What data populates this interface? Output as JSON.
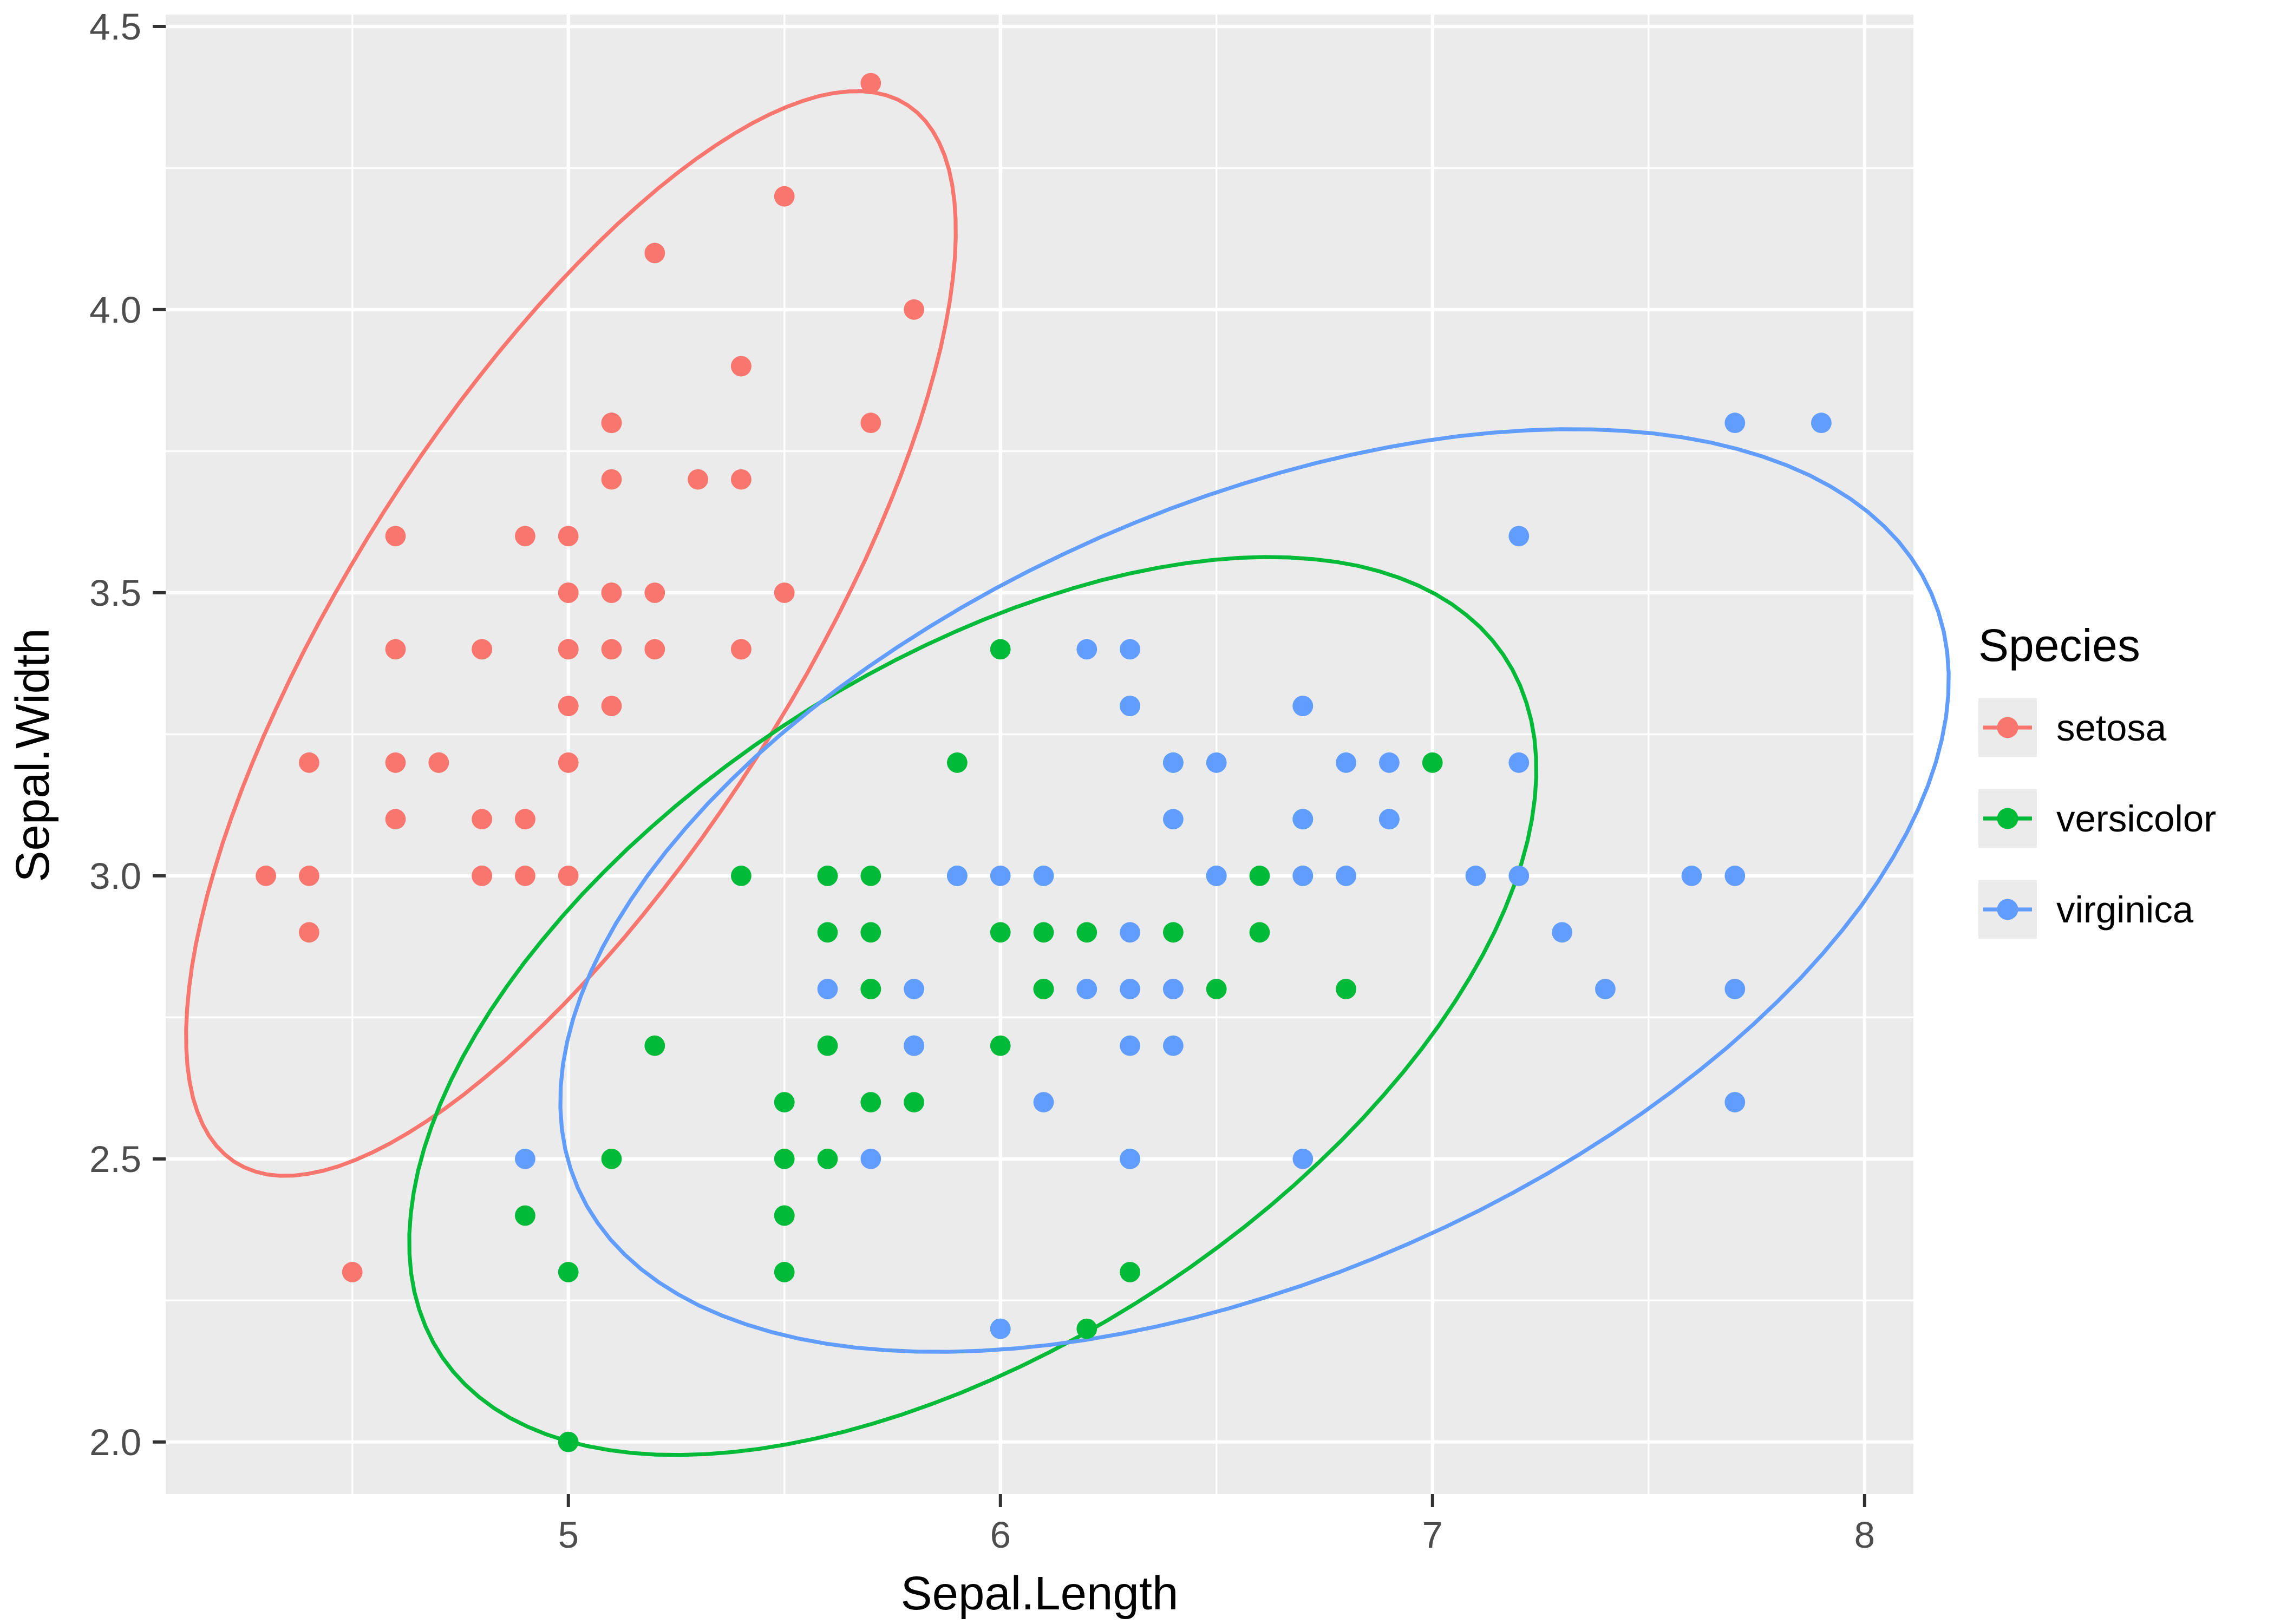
{
  "colors": {
    "panel_bg": "#EBEBEB",
    "grid": "#FFFFFF",
    "tick_mark": "#333333",
    "tick_label": "#4D4D4D",
    "axis_title": "#000000",
    "legend_key_bg": "#EBEBEB",
    "setosa": "#F8766D",
    "versicolor": "#00BA38",
    "virginica": "#619CFF"
  },
  "chart_data": {
    "type": "scatter",
    "title": "",
    "xlabel": "Sepal.Length",
    "ylabel": "Sepal.Width",
    "legend_title": "Species",
    "legend_position": "right",
    "grid": "on",
    "x_domain": [
      4.068,
      8.113
    ],
    "y_domain": [
      1.908,
      4.521
    ],
    "x_tick_values": [
      5,
      6,
      7,
      8
    ],
    "x_tick_labels": [
      "5",
      "6",
      "7",
      "8"
    ],
    "y_tick_values": [
      2.0,
      2.5,
      3.0,
      3.5,
      4.0,
      4.5
    ],
    "y_tick_labels": [
      "2.0",
      "2.5",
      "3.0",
      "3.5",
      "4.0",
      "4.5"
    ],
    "x_minor": [
      4.5,
      5.5,
      6.5,
      7.5
    ],
    "y_minor": [
      2.25,
      2.75,
      3.25,
      3.75,
      4.25
    ],
    "ellipse_level": 0.95,
    "ellipse_radius": 2.527,
    "series": [
      {
        "name": "setosa",
        "color": "#F8766D",
        "points": [
          [
            5.1,
            3.5
          ],
          [
            4.9,
            3.0
          ],
          [
            4.7,
            3.2
          ],
          [
            4.6,
            3.1
          ],
          [
            5.0,
            3.6
          ],
          [
            5.4,
            3.9
          ],
          [
            4.6,
            3.4
          ],
          [
            5.0,
            3.4
          ],
          [
            4.4,
            2.9
          ],
          [
            4.9,
            3.1
          ],
          [
            5.4,
            3.7
          ],
          [
            4.8,
            3.4
          ],
          [
            4.8,
            3.0
          ],
          [
            4.3,
            3.0
          ],
          [
            5.8,
            4.0
          ],
          [
            5.7,
            4.4
          ],
          [
            5.4,
            3.9
          ],
          [
            5.1,
            3.5
          ],
          [
            5.7,
            3.8
          ],
          [
            5.1,
            3.8
          ],
          [
            5.4,
            3.4
          ],
          [
            5.1,
            3.7
          ],
          [
            4.6,
            3.6
          ],
          [
            5.1,
            3.3
          ],
          [
            4.8,
            3.4
          ],
          [
            5.0,
            3.0
          ],
          [
            5.0,
            3.4
          ],
          [
            5.2,
            3.5
          ],
          [
            5.2,
            3.4
          ],
          [
            4.7,
            3.2
          ],
          [
            4.8,
            3.1
          ],
          [
            5.4,
            3.4
          ],
          [
            5.2,
            4.1
          ],
          [
            5.5,
            4.2
          ],
          [
            4.9,
            3.1
          ],
          [
            5.0,
            3.2
          ],
          [
            5.5,
            3.5
          ],
          [
            4.9,
            3.6
          ],
          [
            4.4,
            3.0
          ],
          [
            5.1,
            3.4
          ],
          [
            5.0,
            3.5
          ],
          [
            4.5,
            2.3
          ],
          [
            4.4,
            3.2
          ],
          [
            5.0,
            3.5
          ],
          [
            5.1,
            3.8
          ],
          [
            4.8,
            3.0
          ],
          [
            5.1,
            3.8
          ],
          [
            4.6,
            3.2
          ],
          [
            5.3,
            3.7
          ],
          [
            5.0,
            3.3
          ]
        ]
      },
      {
        "name": "versicolor",
        "color": "#00BA38",
        "points": [
          [
            7.0,
            3.2
          ],
          [
            6.4,
            3.2
          ],
          [
            6.9,
            3.1
          ],
          [
            5.5,
            2.3
          ],
          [
            6.5,
            2.8
          ],
          [
            5.7,
            2.8
          ],
          [
            6.3,
            3.3
          ],
          [
            4.9,
            2.4
          ],
          [
            6.6,
            2.9
          ],
          [
            5.2,
            2.7
          ],
          [
            5.0,
            2.0
          ],
          [
            5.9,
            3.0
          ],
          [
            6.0,
            2.2
          ],
          [
            6.1,
            2.9
          ],
          [
            5.6,
            2.9
          ],
          [
            6.7,
            3.1
          ],
          [
            5.6,
            3.0
          ],
          [
            5.8,
            2.7
          ],
          [
            6.2,
            2.2
          ],
          [
            5.6,
            2.5
          ],
          [
            5.9,
            3.2
          ],
          [
            6.1,
            2.8
          ],
          [
            6.3,
            2.5
          ],
          [
            6.1,
            2.8
          ],
          [
            6.4,
            2.9
          ],
          [
            6.6,
            3.0
          ],
          [
            6.8,
            2.8
          ],
          [
            6.7,
            3.0
          ],
          [
            6.0,
            2.9
          ],
          [
            5.7,
            2.6
          ],
          [
            5.5,
            2.4
          ],
          [
            5.5,
            2.4
          ],
          [
            5.8,
            2.7
          ],
          [
            6.0,
            2.7
          ],
          [
            5.4,
            3.0
          ],
          [
            6.0,
            3.4
          ],
          [
            6.7,
            3.1
          ],
          [
            6.3,
            2.3
          ],
          [
            5.6,
            3.0
          ],
          [
            5.5,
            2.5
          ],
          [
            5.5,
            2.6
          ],
          [
            6.1,
            3.0
          ],
          [
            5.8,
            2.6
          ],
          [
            5.0,
            2.3
          ],
          [
            5.6,
            2.7
          ],
          [
            5.7,
            3.0
          ],
          [
            5.7,
            2.9
          ],
          [
            6.2,
            2.9
          ],
          [
            5.1,
            2.5
          ],
          [
            5.7,
            2.8
          ]
        ]
      },
      {
        "name": "virginica",
        "color": "#619CFF",
        "points": [
          [
            6.3,
            3.3
          ],
          [
            5.8,
            2.7
          ],
          [
            7.1,
            3.0
          ],
          [
            6.3,
            2.9
          ],
          [
            6.5,
            3.0
          ],
          [
            7.6,
            3.0
          ],
          [
            4.9,
            2.5
          ],
          [
            7.3,
            2.9
          ],
          [
            6.7,
            2.5
          ],
          [
            7.2,
            3.6
          ],
          [
            6.5,
            3.2
          ],
          [
            6.4,
            2.7
          ],
          [
            6.8,
            3.0
          ],
          [
            5.7,
            2.5
          ],
          [
            5.8,
            2.8
          ],
          [
            6.4,
            3.2
          ],
          [
            6.5,
            3.0
          ],
          [
            7.7,
            3.8
          ],
          [
            7.7,
            2.6
          ],
          [
            6.0,
            2.2
          ],
          [
            6.9,
            3.2
          ],
          [
            5.6,
            2.8
          ],
          [
            7.7,
            2.8
          ],
          [
            6.3,
            2.7
          ],
          [
            6.7,
            3.3
          ],
          [
            7.2,
            3.2
          ],
          [
            6.2,
            2.8
          ],
          [
            6.1,
            3.0
          ],
          [
            6.4,
            2.8
          ],
          [
            7.2,
            3.0
          ],
          [
            7.4,
            2.8
          ],
          [
            7.9,
            3.8
          ],
          [
            6.4,
            2.8
          ],
          [
            6.3,
            2.8
          ],
          [
            6.1,
            2.6
          ],
          [
            7.7,
            3.0
          ],
          [
            6.3,
            3.4
          ],
          [
            6.4,
            3.1
          ],
          [
            6.0,
            3.0
          ],
          [
            6.9,
            3.1
          ],
          [
            6.7,
            3.1
          ],
          [
            6.9,
            3.1
          ],
          [
            5.8,
            2.7
          ],
          [
            6.8,
            3.2
          ],
          [
            6.7,
            3.3
          ],
          [
            6.7,
            3.0
          ],
          [
            6.3,
            2.5
          ],
          [
            6.5,
            3.0
          ],
          [
            6.2,
            3.4
          ],
          [
            5.9,
            3.0
          ]
        ]
      }
    ]
  }
}
